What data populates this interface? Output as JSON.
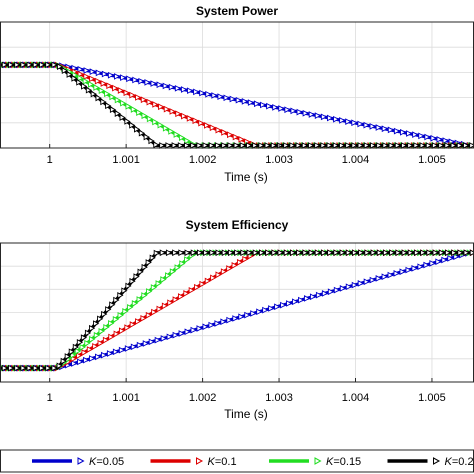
{
  "chart_data": [
    {
      "type": "line",
      "title": "System Power",
      "xlabel": "Time (s)",
      "ylabel": "",
      "xlim": [
        0.99935,
        1.00555
      ],
      "ylim": [
        0,
        1
      ],
      "xticks": [
        1,
        1.001,
        1.002,
        1.003,
        1.004,
        1.005
      ],
      "xtick_labels": [
        "1",
        "1.001",
        "1.002",
        "1.003",
        "1.004",
        "1.005"
      ],
      "grid": true,
      "series": [
        {
          "name": "K=0.05",
          "color": "#0000cc",
          "x": [
            0.99935,
            1.0001,
            1.0055
          ],
          "y": [
            0.66,
            0.66,
            0.02
          ]
        },
        {
          "name": "K=0.1",
          "color": "#dd0000",
          "x": [
            0.99935,
            1.0001,
            1.0027,
            1.00555
          ],
          "y": [
            0.66,
            0.66,
            0.02,
            0.02
          ]
        },
        {
          "name": "K=0.15",
          "color": "#22dd22",
          "x": [
            0.99935,
            1.0001,
            1.0019,
            1.00555
          ],
          "y": [
            0.66,
            0.66,
            0.02,
            0.02
          ]
        },
        {
          "name": "K=0.2",
          "color": "#000000",
          "x": [
            0.99935,
            1.0001,
            1.0014,
            1.00555
          ],
          "y": [
            0.66,
            0.66,
            0.02,
            0.02
          ]
        }
      ]
    },
    {
      "type": "line",
      "title": "System Efficiency",
      "xlabel": "Time (s)",
      "ylabel": "",
      "xlim": [
        0.99935,
        1.00555
      ],
      "ylim": [
        0,
        1
      ],
      "xticks": [
        1,
        1.001,
        1.002,
        1.003,
        1.004,
        1.005
      ],
      "xtick_labels": [
        "1",
        "1.001",
        "1.002",
        "1.003",
        "1.004",
        "1.005"
      ],
      "grid": true,
      "series": [
        {
          "name": "K=0.05",
          "color": "#0000cc",
          "x": [
            0.99935,
            1.0001,
            1.0055
          ],
          "y": [
            0.1,
            0.1,
            0.93
          ]
        },
        {
          "name": "K=0.1",
          "color": "#dd0000",
          "x": [
            0.99935,
            1.0001,
            1.0027,
            1.00555
          ],
          "y": [
            0.1,
            0.1,
            0.93,
            0.93
          ]
        },
        {
          "name": "K=0.15",
          "color": "#22dd22",
          "x": [
            0.99935,
            1.0001,
            1.0019,
            1.00555
          ],
          "y": [
            0.1,
            0.1,
            0.93,
            0.93
          ]
        },
        {
          "name": "K=0.2",
          "color": "#000000",
          "x": [
            0.99935,
            1.0001,
            1.0014,
            1.00555
          ],
          "y": [
            0.1,
            0.1,
            0.93,
            0.93
          ]
        }
      ]
    }
  ],
  "legend": {
    "placement": "bottom",
    "symbol": "K",
    "entries": [
      {
        "value": "=0.05",
        "color": "#0000cc"
      },
      {
        "value": "=0.1",
        "color": "#dd0000"
      },
      {
        "value": "=0.15",
        "color": "#22dd22"
      },
      {
        "value": "=0.2",
        "color": "#000000"
      }
    ]
  }
}
